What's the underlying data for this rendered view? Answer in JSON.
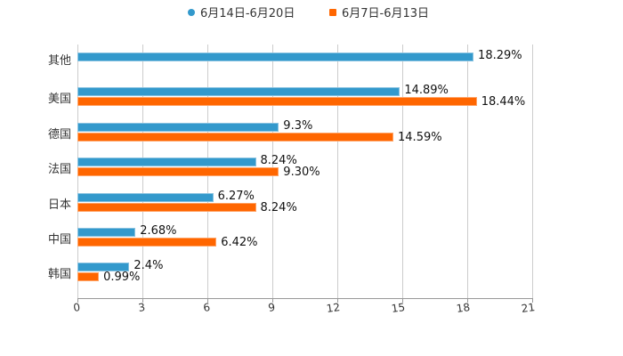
{
  "legend": [
    {
      "label": "6月14日-6月20日",
      "color": "#3399cc",
      "marker": "circle"
    },
    {
      "label": "6月7日-6月13日",
      "color": "#ff6600",
      "marker": "square"
    }
  ],
  "chart_data": {
    "type": "bar",
    "orientation": "horizontal",
    "title": "",
    "xlabel": "",
    "ylabel": "",
    "categories": [
      "其他",
      "美国",
      "德国",
      "法国",
      "日本",
      "中国",
      "韩国"
    ],
    "series": [
      {
        "name": "6月14日-6月20日",
        "color": "#3399cc",
        "values": [
          18.29,
          14.89,
          9.3,
          8.24,
          6.27,
          2.68,
          2.4
        ],
        "labels": [
          "18.29%",
          "14.89%",
          "9.3%",
          "8.24%",
          "6.27%",
          "2.68%",
          "2.4%"
        ]
      },
      {
        "name": "6月7日-6月13日",
        "color": "#ff6600",
        "values": [
          null,
          18.44,
          14.59,
          9.3,
          8.24,
          6.42,
          0.99
        ],
        "labels": [
          "",
          "18.44%",
          "14.59%",
          "9.30%",
          "8.24%",
          "6.42%",
          "0.99%"
        ]
      }
    ],
    "xlim": [
      0,
      21
    ],
    "xticks": [
      "0",
      "3",
      "6",
      "9",
      "12",
      "15",
      "18",
      "21"
    ],
    "grid": true,
    "legend_position": "top"
  }
}
